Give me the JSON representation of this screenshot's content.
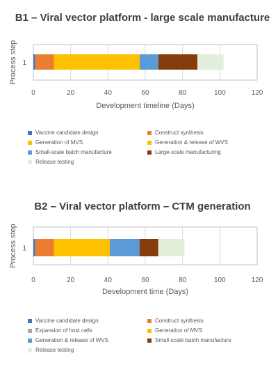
{
  "chart_data": [
    {
      "type": "bar",
      "orientation": "horizontal",
      "stacked": true,
      "title": "B1 – Viral vector platform  - large scale manufacture",
      "ylabel": "Process step",
      "xlabel": "Development timeline (Days)",
      "categories": [
        "1"
      ],
      "xlim": [
        0,
        120
      ],
      "xticks": [
        0,
        20,
        40,
        60,
        80,
        100,
        120
      ],
      "grid": true,
      "legend_position": "bottom",
      "series": [
        {
          "name": "Vaccine candidate design",
          "values": [
            1
          ],
          "color": "#4472C4"
        },
        {
          "name": "Construct synthesis",
          "values": [
            10
          ],
          "color": "#ED7D31"
        },
        {
          "name": "Generation of MVS",
          "values": [
            46
          ],
          "color": "#FFC000"
        },
        {
          "name": "Generation & release of WVS",
          "values": [
            0
          ],
          "color": "#F2C200"
        },
        {
          "name": "Small-scale batch manufacture",
          "values": [
            10
          ],
          "color": "#5B9BD5"
        },
        {
          "name": "Large-scale manufacturing",
          "values": [
            21
          ],
          "color": "#843C0C"
        },
        {
          "name": "Release testing",
          "values": [
            14
          ],
          "color": "#E2EFDA"
        }
      ]
    },
    {
      "type": "bar",
      "orientation": "horizontal",
      "stacked": true,
      "title": "B2 – Viral vector platform – CTM generation",
      "ylabel": "Process step",
      "xlabel": "Development time (Days)",
      "categories": [
        "1"
      ],
      "xlim": [
        0,
        120
      ],
      "xticks": [
        0,
        20,
        40,
        60,
        80,
        100,
        120
      ],
      "grid": true,
      "legend_position": "bottom",
      "series": [
        {
          "name": "Vaccine candidate design",
          "values": [
            1
          ],
          "color": "#4472C4"
        },
        {
          "name": "Construct synthesis",
          "values": [
            10
          ],
          "color": "#ED7D31"
        },
        {
          "name": "Expansion of host cells",
          "values": [
            0
          ],
          "color": "#A5A5A5"
        },
        {
          "name": "Generation of MVS",
          "values": [
            30
          ],
          "color": "#FFC000"
        },
        {
          "name": "Generation & release of WVS",
          "values": [
            16
          ],
          "color": "#5B9BD5"
        },
        {
          "name": "Small-scale batch manufacture",
          "values": [
            10
          ],
          "color": "#843C0C"
        },
        {
          "name": "Release testing",
          "values": [
            14
          ],
          "color": "#E2EFDA"
        }
      ]
    }
  ]
}
